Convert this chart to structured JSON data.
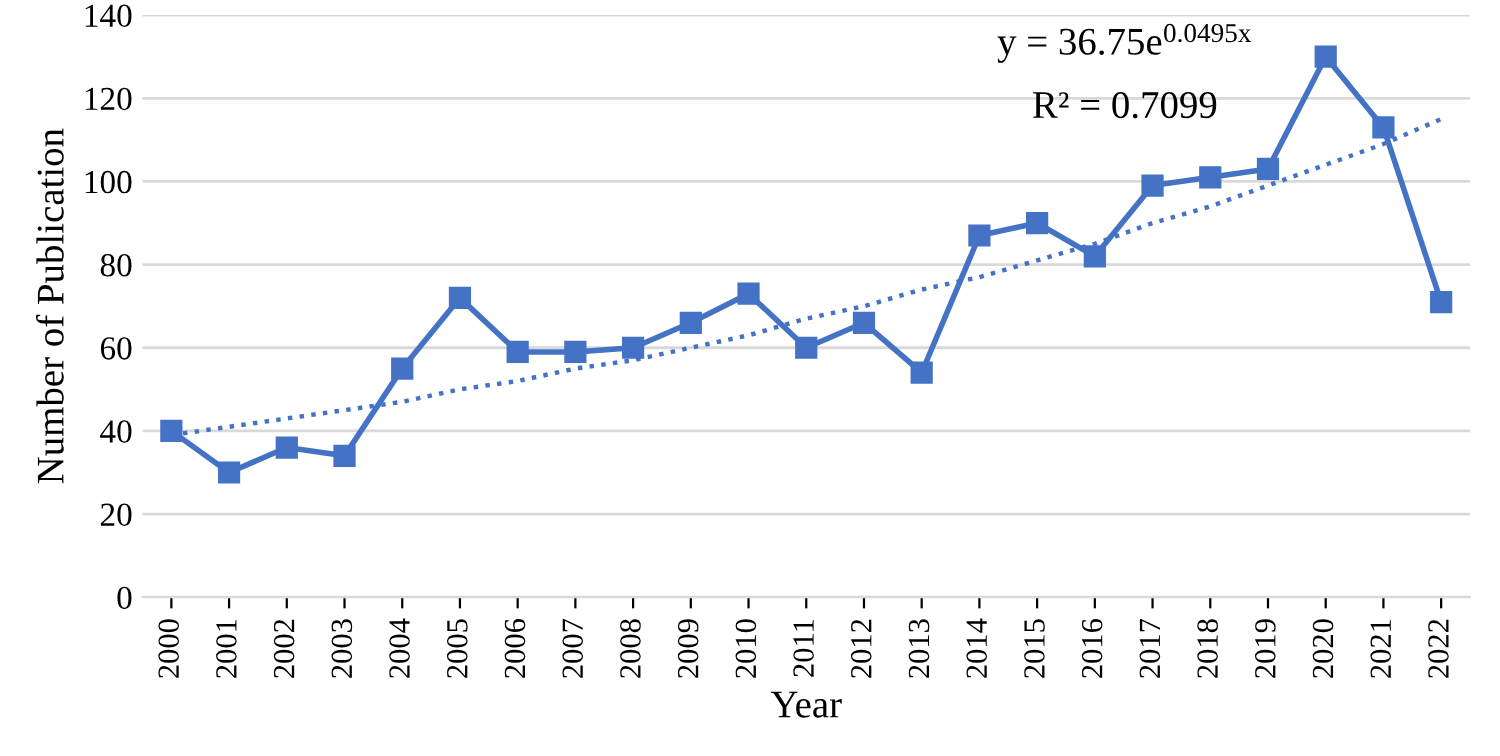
{
  "chart_data": {
    "type": "line",
    "xlabel": "Year",
    "ylabel": "Number of Publication",
    "categories": [
      "2000",
      "2001",
      "2002",
      "2003",
      "2004",
      "2005",
      "2006",
      "2007",
      "2008",
      "2009",
      "2010",
      "2011",
      "2012",
      "2013",
      "2014",
      "2015",
      "2016",
      "2017",
      "2018",
      "2019",
      "2020",
      "2021",
      "2022"
    ],
    "series": [
      {
        "color": "#4472c4",
        "marker": "square",
        "line_style": "solid",
        "values": [
          40,
          30,
          36,
          34,
          55,
          72,
          59,
          59,
          60,
          66,
          73,
          60,
          66,
          54,
          87,
          90,
          82,
          99,
          101,
          103,
          130,
          113,
          71
        ]
      },
      {
        "color": "#4472c4",
        "marker": "none",
        "line_style": "dotted",
        "values": [
          39,
          41,
          43,
          45,
          47,
          50,
          52,
          55,
          57,
          60,
          63,
          67,
          70,
          74,
          77,
          81,
          85,
          90,
          94,
          99,
          104,
          109,
          115
        ]
      }
    ],
    "annotations": [
      "y = 36.75e$^{0.0495x}$",
      "R² = 0.7099"
    ],
    "ylim": [
      0,
      140
    ],
    "yticks": [
      0,
      20,
      40,
      60,
      80,
      100,
      120,
      140
    ],
    "grid": "y"
  }
}
